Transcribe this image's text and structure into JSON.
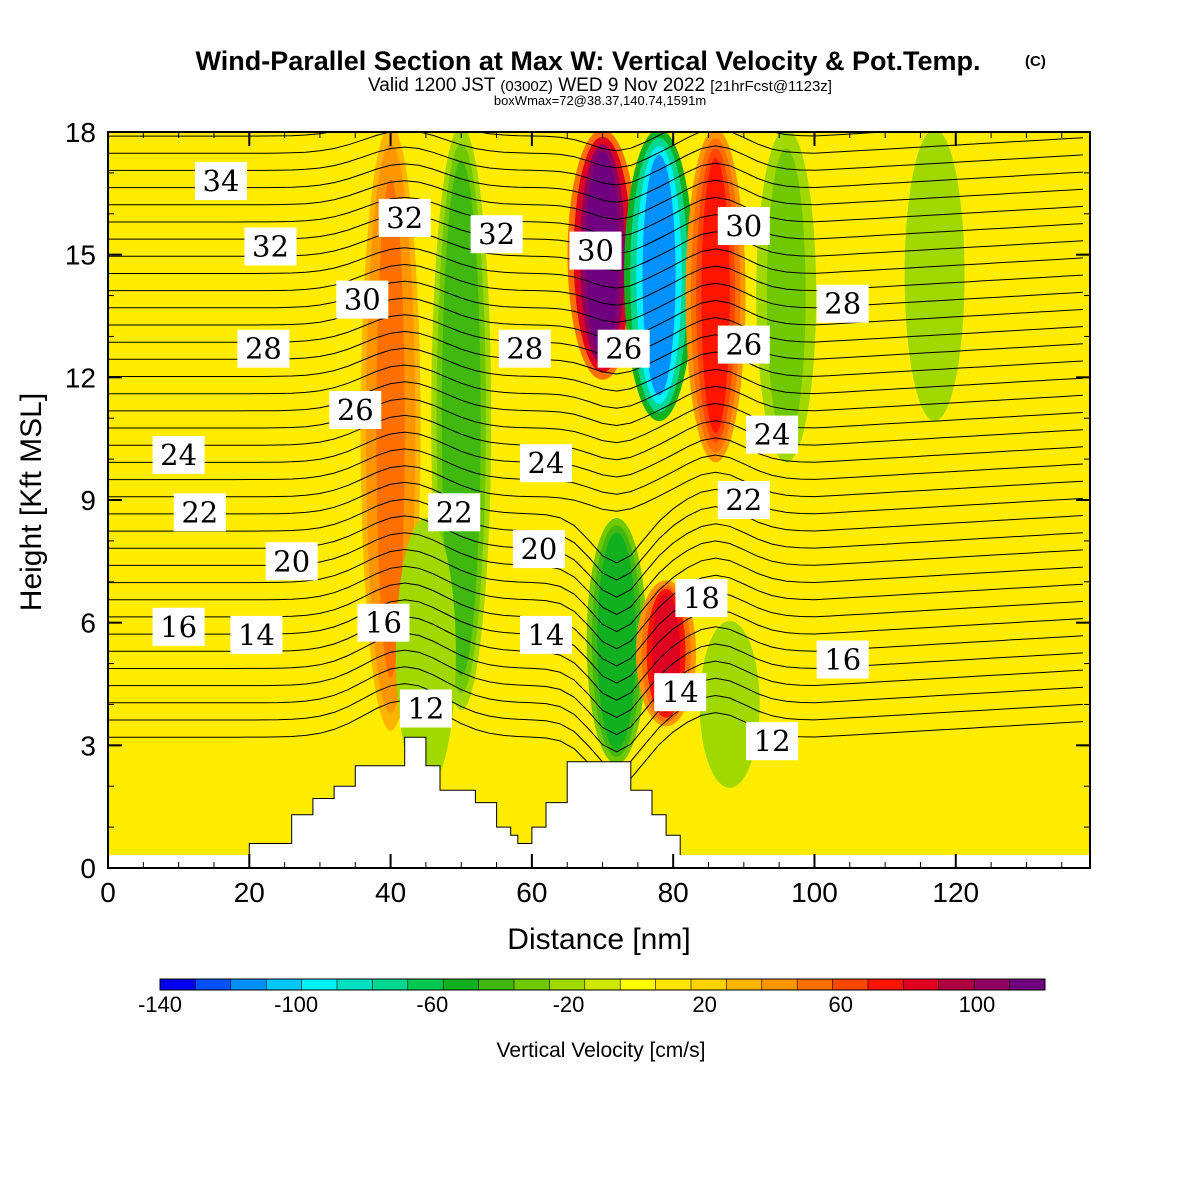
{
  "header": {
    "title": "Wind-Parallel Section at Max W: Vertical Velocity & Pot.Temp.",
    "copyright": "(C)",
    "valid_prefix": "Valid 1200 JST",
    "valid_utc": "(0300Z)",
    "valid_day": "WED 9 Nov 2022",
    "forecast_info": "[21hrFcst@1123z]",
    "box_info": "boxWmax=72@38.37,140.74,1591m"
  },
  "chart_data": {
    "type": "heatmap",
    "title": "Wind-Parallel Section at Max W: Vertical Velocity & Pot.Temp.",
    "xlabel": "Distance [nm]",
    "ylabel": "Height [Kft MSL]",
    "xlim": [
      0,
      139
    ],
    "ylim": [
      0,
      18
    ],
    "xticks": [
      0,
      20,
      40,
      60,
      80,
      100,
      120
    ],
    "yticks": [
      0,
      3,
      6,
      9,
      12,
      15,
      18
    ],
    "colorbar": {
      "label": "Vertical Velocity [cm/s]",
      "range": [
        -140,
        120
      ],
      "step": 10,
      "ticks": [
        -140,
        -100,
        -60,
        -20,
        20,
        60,
        100
      ],
      "colors": [
        "#0000f0",
        "#0050ff",
        "#0090ff",
        "#00c8ff",
        "#00f0ff",
        "#00e0c0",
        "#00d890",
        "#00c850",
        "#10b020",
        "#40b810",
        "#70c800",
        "#a0d800",
        "#d0e800",
        "#ffff00",
        "#ffe600",
        "#ffd200",
        "#ffb400",
        "#ff9600",
        "#ff7000",
        "#ff4600",
        "#ff1400",
        "#e00020",
        "#b00040",
        "#900060",
        "#700080"
      ]
    },
    "vertical_velocity_features": [
      {
        "x": 40,
        "y_bottom": 3.5,
        "y_top": 18,
        "w_cms": 40
      },
      {
        "x": 50,
        "y_bottom": 4.0,
        "y_top": 18,
        "w_cms": -50
      },
      {
        "x": 70,
        "y_bottom": 12,
        "y_top": 18,
        "w_cms": 110
      },
      {
        "x": 78,
        "y_bottom": 11,
        "y_top": 18,
        "w_cms": -120
      },
      {
        "x": 72,
        "y_bottom": 2.6,
        "y_top": 8.5,
        "w_cms": -60
      },
      {
        "x": 79,
        "y_bottom": 3.5,
        "y_top": 7.0,
        "w_cms": 72
      },
      {
        "x": 86,
        "y_bottom": 10,
        "y_top": 18,
        "w_cms": 60
      },
      {
        "x": 96,
        "y_bottom": 10,
        "y_top": 18,
        "w_cms": -40
      },
      {
        "x": 117,
        "y_bottom": 11,
        "y_top": 18,
        "w_cms": -30
      },
      {
        "x": 45,
        "y_bottom": 2.0,
        "y_top": 8.5,
        "w_cms": -30
      },
      {
        "x": 88,
        "y_bottom": 2.0,
        "y_top": 6.0,
        "w_cms": -30
      }
    ],
    "terrain": {
      "x": [
        16,
        20,
        23,
        26,
        29,
        32,
        35,
        42,
        45,
        47,
        52,
        55,
        57,
        58,
        60,
        62,
        65,
        70,
        74,
        77,
        79,
        81,
        84
      ],
      "height_kft": [
        0.3,
        0.6,
        0.6,
        1.3,
        1.7,
        2.0,
        2.5,
        3.2,
        2.5,
        1.9,
        1.6,
        1.0,
        0.8,
        0.6,
        1.0,
        1.6,
        2.6,
        2.6,
        1.9,
        1.3,
        0.8,
        0.3,
        0.3
      ]
    },
    "theta_contours": [
      {
        "label": "12",
        "label_x": 45,
        "label_y": 3.9
      },
      {
        "label": "12",
        "label_x": 94,
        "label_y": 3.1
      },
      {
        "label": "14",
        "label_x": 21,
        "label_y": 5.7
      },
      {
        "label": "14",
        "label_x": 62,
        "label_y": 5.7
      },
      {
        "label": "14",
        "label_x": 81,
        "label_y": 4.3
      },
      {
        "label": "16",
        "label_x": 10,
        "label_y": 5.9
      },
      {
        "label": "16",
        "label_x": 39,
        "label_y": 6.0
      },
      {
        "label": "16",
        "label_x": 104,
        "label_y": 5.1
      },
      {
        "label": "18",
        "label_x": 84,
        "label_y": 6.6
      },
      {
        "label": "20",
        "label_x": 26,
        "label_y": 7.5
      },
      {
        "label": "20",
        "label_x": 61,
        "label_y": 7.8
      },
      {
        "label": "22",
        "label_x": 13,
        "label_y": 8.7
      },
      {
        "label": "22",
        "label_x": 49,
        "label_y": 8.7
      },
      {
        "label": "22",
        "label_x": 90,
        "label_y": 9.0
      },
      {
        "label": "24",
        "label_x": 10,
        "label_y": 10.1
      },
      {
        "label": "24",
        "label_x": 62,
        "label_y": 9.9
      },
      {
        "label": "24",
        "label_x": 94,
        "label_y": 10.6
      },
      {
        "label": "26",
        "label_x": 35,
        "label_y": 11.2
      },
      {
        "label": "26",
        "label_x": 73,
        "label_y": 12.7
      },
      {
        "label": "26",
        "label_x": 90,
        "label_y": 12.8
      },
      {
        "label": "28",
        "label_x": 22,
        "label_y": 12.7
      },
      {
        "label": "28",
        "label_x": 59,
        "label_y": 12.7
      },
      {
        "label": "28",
        "label_x": 104,
        "label_y": 13.8
      },
      {
        "label": "30",
        "label_x": 36,
        "label_y": 13.9
      },
      {
        "label": "30",
        "label_x": 69,
        "label_y": 15.1
      },
      {
        "label": "30",
        "label_x": 90,
        "label_y": 15.7
      },
      {
        "label": "32",
        "label_x": 23,
        "label_y": 15.2
      },
      {
        "label": "32",
        "label_x": 42,
        "label_y": 15.9
      },
      {
        "label": "32",
        "label_x": 55,
        "label_y": 15.5
      },
      {
        "label": "34",
        "label_x": 16,
        "label_y": 16.8
      }
    ]
  }
}
